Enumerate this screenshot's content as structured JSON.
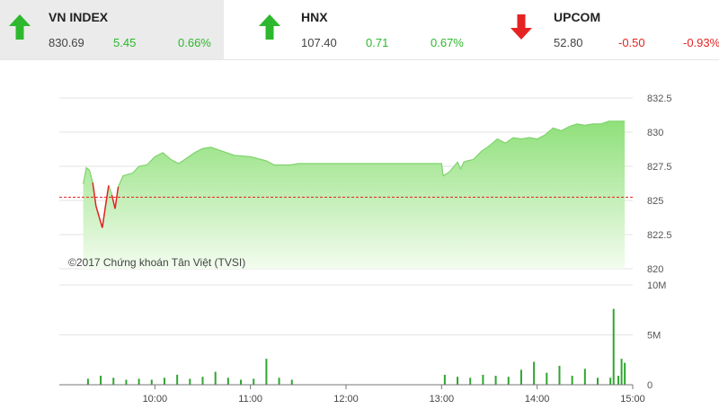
{
  "indices": [
    {
      "name": "VN INDEX",
      "value": "830.69",
      "change": "5.45",
      "percent": "0.66%",
      "direction": "up"
    },
    {
      "name": "HNX",
      "value": "107.40",
      "change": "0.71",
      "percent": "0.67%",
      "direction": "up"
    },
    {
      "name": "UPCOM",
      "value": "52.80",
      "change": "-0.50",
      "percent": "-0.93%",
      "direction": "down"
    }
  ],
  "colors": {
    "up": "#2db82d",
    "down": "#e52323",
    "area_top": "#8fe07a",
    "reference": "#e52323",
    "volume": "#2fa62f"
  },
  "chart_data": {
    "type": "area",
    "watermark": "©2017 Chứng khoán Tân Việt (TVSI)",
    "price_ticks": [
      "832.5",
      "830",
      "827.5",
      "825",
      "822.5",
      "820"
    ],
    "volume_ticks": [
      "10M",
      "5M",
      "0"
    ],
    "time_ticks": [
      "10:00",
      "11:00",
      "12:00",
      "13:00",
      "14:00",
      "15:00"
    ],
    "price_axis": {
      "min": 820,
      "max": 832.5
    },
    "volume_axis": {
      "min": 0,
      "max": 10
    },
    "reference_price": 825.24,
    "price_series": {
      "time": [
        "09:15",
        "09:17",
        "09:19",
        "09:21",
        "09:23",
        "09:25",
        "09:27",
        "09:29",
        "09:31",
        "09:33",
        "09:35",
        "09:37",
        "09:40",
        "09:43",
        "09:46",
        "09:50",
        "09:55",
        "10:00",
        "10:05",
        "10:10",
        "10:15",
        "10:20",
        "10:25",
        "10:30",
        "10:35",
        "10:40",
        "10:50",
        "11:00",
        "11:10",
        "11:15",
        "11:20",
        "11:25",
        "11:30",
        "13:00",
        "13:01",
        "13:05",
        "13:10",
        "13:12",
        "13:14",
        "13:16",
        "13:20",
        "13:25",
        "13:30",
        "13:35",
        "13:40",
        "13:45",
        "13:50",
        "13:55",
        "14:00",
        "14:05",
        "14:10",
        "14:15",
        "14:20",
        "14:25",
        "14:30",
        "14:35",
        "14:40",
        "14:45",
        "14:50",
        "14:55"
      ],
      "price": [
        826.2,
        827.4,
        827.2,
        826.3,
        824.6,
        823.8,
        823.0,
        824.6,
        826.1,
        825.4,
        824.4,
        826.0,
        826.8,
        826.9,
        827.0,
        827.5,
        827.6,
        828.2,
        828.5,
        828.0,
        827.7,
        828.1,
        828.5,
        828.8,
        828.9,
        828.7,
        828.3,
        828.2,
        827.9,
        827.6,
        827.6,
        827.6,
        827.7,
        827.7,
        826.8,
        827.1,
        827.8,
        827.3,
        827.8,
        827.9,
        828.0,
        828.6,
        829.0,
        829.5,
        829.2,
        829.6,
        829.5,
        829.6,
        829.5,
        829.8,
        830.3,
        830.1,
        830.4,
        830.6,
        830.5,
        830.6,
        830.6,
        830.8,
        830.8,
        830.8
      ]
    },
    "volume_series": {
      "time": [
        "09:18",
        "09:26",
        "09:34",
        "09:42",
        "09:50",
        "09:58",
        "10:06",
        "10:14",
        "10:22",
        "10:30",
        "10:38",
        "10:46",
        "10:54",
        "11:02",
        "11:10",
        "11:18",
        "11:26",
        "13:02",
        "13:10",
        "13:18",
        "13:26",
        "13:34",
        "13:42",
        "13:50",
        "13:58",
        "14:06",
        "14:14",
        "14:22",
        "14:30",
        "14:38",
        "14:46",
        "14:48",
        "14:51",
        "14:53",
        "14:55"
      ],
      "volume": [
        0.6,
        0.9,
        0.7,
        0.5,
        0.6,
        0.5,
        0.7,
        1.0,
        0.6,
        0.8,
        1.3,
        0.7,
        0.5,
        0.6,
        2.6,
        0.7,
        0.5,
        1.0,
        0.8,
        0.7,
        1.0,
        0.9,
        0.8,
        1.5,
        2.3,
        1.2,
        1.9,
        0.9,
        1.6,
        0.7,
        0.7,
        7.6,
        0.9,
        2.6,
        2.2
      ]
    }
  }
}
